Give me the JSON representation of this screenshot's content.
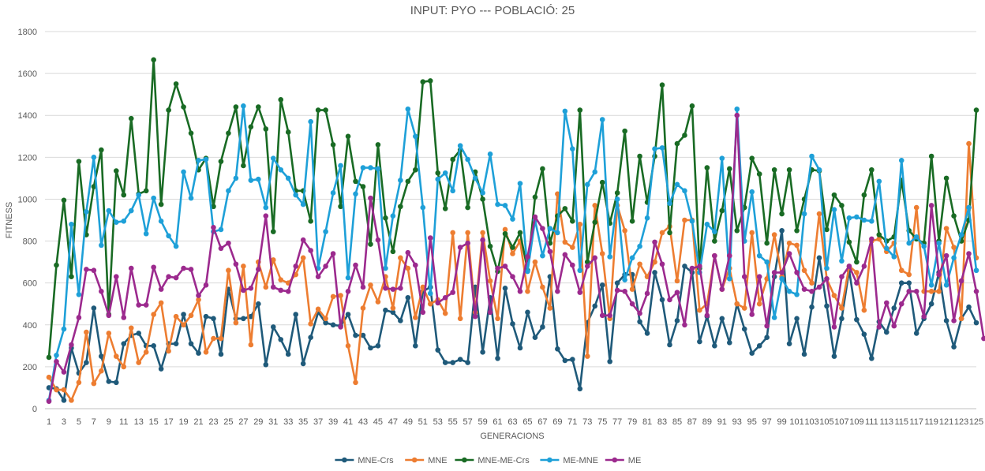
{
  "chart_data": {
    "type": "line",
    "title": "INPUT: PYO  ---  POBLACIÓ: 25",
    "xlabel": "GENERACIONS",
    "ylabel": "FITNESS",
    "ylim": [
      0,
      1800
    ],
    "yticks": [
      0,
      200,
      400,
      600,
      800,
      1000,
      1200,
      1400,
      1600,
      1800
    ],
    "x_first": 1,
    "x_last": 125,
    "x_tick_step": 2,
    "grid": "horizontal",
    "legend_position": "bottom",
    "series": [
      {
        "name": "MNE-Crs",
        "color": "#1f5a7a",
        "values": [
          100,
          95,
          40,
          290,
          170,
          220,
          480,
          250,
          130,
          125,
          310,
          350,
          360,
          300,
          300,
          190,
          310,
          310,
          450,
          310,
          265,
          440,
          430,
          260,
          570,
          430,
          430,
          440,
          500,
          210,
          390,
          330,
          260,
          450,
          215,
          340,
          460,
          410,
          400,
          395,
          450,
          350,
          350,
          290,
          300,
          470,
          460,
          420,
          530,
          300,
          560,
          580,
          280,
          220,
          220,
          235,
          220,
          580,
          270,
          530,
          240,
          575,
          405,
          290,
          460,
          340,
          390,
          630,
          285,
          230,
          235,
          95,
          410,
          490,
          590,
          225,
          600,
          640,
          640,
          415,
          360,
          650,
          520,
          305,
          420,
          680,
          650,
          320,
          440,
          300,
          430,
          315,
          500,
          380,
          265,
          300,
          340,
          630,
          850,
          310,
          430,
          260,
          485,
          720,
          490,
          250,
          430,
          660,
          425,
          355,
          240,
          415,
          365,
          480,
          600,
          600,
          360,
          430,
          500,
          650,
          420,
          295,
          430,
          485,
          410
        ]
      },
      {
        "name": "MNE",
        "color": "#ed7d31",
        "values": [
          150,
          90,
          90,
          40,
          125,
          365,
          120,
          180,
          360,
          250,
          200,
          385,
          220,
          270,
          450,
          505,
          275,
          440,
          400,
          445,
          520,
          270,
          335,
          335,
          660,
          410,
          680,
          305,
          700,
          580,
          710,
          615,
          600,
          640,
          720,
          405,
          475,
          430,
          535,
          540,
          300,
          125,
          480,
          590,
          510,
          630,
          480,
          720,
          670,
          435,
          580,
          500,
          520,
          455,
          840,
          430,
          840,
          460,
          840,
          610,
          430,
          855,
          740,
          800,
          560,
          700,
          580,
          480,
          1025,
          795,
          770,
          880,
          250,
          970,
          740,
          430,
          970,
          850,
          570,
          690,
          630,
          700,
          840,
          870,
          610,
          900,
          900,
          470,
          500,
          730,
          570,
          670,
          500,
          480,
          840,
          500,
          620,
          830,
          630,
          790,
          780,
          660,
          600,
          930,
          620,
          540,
          480,
          680,
          650,
          470,
          800,
          810,
          750,
          790,
          660,
          640,
          960,
          560,
          560,
          560,
          860,
          770,
          430,
          1265,
          720
        ]
      },
      {
        "name": "MNE-ME-Crs",
        "color": "#196b24",
        "values": [
          245,
          685,
          995,
          630,
          1180,
          830,
          1060,
          1235,
          450,
          1135,
          1020,
          1385,
          1025,
          1040,
          1665,
          975,
          1425,
          1550,
          1440,
          1315,
          1140,
          1195,
          965,
          1180,
          1315,
          1440,
          1160,
          1345,
          1440,
          1335,
          845,
          1475,
          1320,
          1040,
          1040,
          895,
          1425,
          1425,
          1260,
          965,
          1300,
          1085,
          1060,
          785,
          1260,
          910,
          750,
          965,
          1085,
          1140,
          1560,
          1565,
          1125,
          955,
          1190,
          1235,
          960,
          1130,
          1000,
          775,
          655,
          835,
          770,
          840,
          660,
          1010,
          1145,
          790,
          920,
          955,
          895,
          1425,
          700,
          890,
          1080,
          885,
          1030,
          1325,
          895,
          1205,
          985,
          1205,
          1545,
          840,
          1265,
          1305,
          1445,
          670,
          1150,
          800,
          945,
          1145,
          850,
          960,
          1195,
          1120,
          790,
          1140,
          930,
          1140,
          850,
          1000,
          1140,
          1135,
          855,
          1020,
          970,
          795,
          700,
          1020,
          1140,
          830,
          800,
          820,
          1090,
          850,
          810,
          790,
          1205,
          800,
          1100,
          920,
          800,
          900,
          1425
        ]
      },
      {
        "name": "ME-MNE",
        "color": "#1ea0d8",
        "values": [
          40,
          255,
          380,
          880,
          545,
          940,
          1200,
          780,
          945,
          890,
          895,
          945,
          1020,
          835,
          1005,
          895,
          825,
          775,
          1130,
          1005,
          1185,
          1190,
          845,
          855,
          1040,
          1100,
          1445,
          1090,
          1095,
          960,
          1195,
          1140,
          1100,
          1020,
          975,
          1370,
          670,
          845,
          1030,
          1160,
          625,
          1025,
          1150,
          1150,
          1145,
          670,
          920,
          1090,
          1430,
          1300,
          960,
          550,
          1095,
          1125,
          1040,
          1255,
          1190,
          1100,
          1030,
          1215,
          975,
          970,
          905,
          1075,
          655,
          900,
          730,
          860,
          840,
          1420,
          1240,
          660,
          1070,
          1130,
          1380,
          725,
          1000,
          615,
          720,
          775,
          910,
          1240,
          1245,
          980,
          1070,
          1040,
          895,
          650,
          880,
          845,
          1195,
          620,
          1430,
          800,
          1035,
          730,
          700,
          435,
          620,
          560,
          545,
          930,
          1205,
          1140,
          670,
          950,
          705,
          910,
          915,
          900,
          895,
          1085,
          765,
          725,
          1185,
          790,
          820,
          775,
          590,
          790,
          590,
          720,
          830,
          960,
          660
        ]
      },
      {
        "name": "ME",
        "color": "#9c2a8e",
        "values": [
          35,
          225,
          175,
          305,
          435,
          665,
          660,
          560,
          445,
          630,
          435,
          670,
          495,
          495,
          675,
          570,
          630,
          625,
          670,
          665,
          540,
          590,
          865,
          765,
          790,
          690,
          565,
          575,
          665,
          920,
          580,
          565,
          560,
          680,
          805,
          755,
          630,
          680,
          740,
          390,
          560,
          685,
          580,
          1005,
          805,
          575,
          570,
          575,
          745,
          685,
          460,
          815,
          505,
          530,
          555,
          770,
          790,
          440,
          805,
          460,
          670,
          680,
          630,
          560,
          725,
          915,
          860,
          750,
          560,
          735,
          685,
          555,
          680,
          720,
          445,
          445,
          565,
          560,
          500,
          455,
          550,
          795,
          690,
          520,
          555,
          400,
          670,
          680,
          445,
          730,
          570,
          730,
          1400,
          630,
          450,
          630,
          395,
          650,
          650,
          740,
          650,
          570,
          560,
          580,
          620,
          390,
          630,
          680,
          600,
          680,
          810,
          390,
          505,
          395,
          500,
          560,
          560,
          440,
          970,
          640,
          730,
          420,
          610,
          740,
          560,
          335
        ]
      }
    ]
  }
}
